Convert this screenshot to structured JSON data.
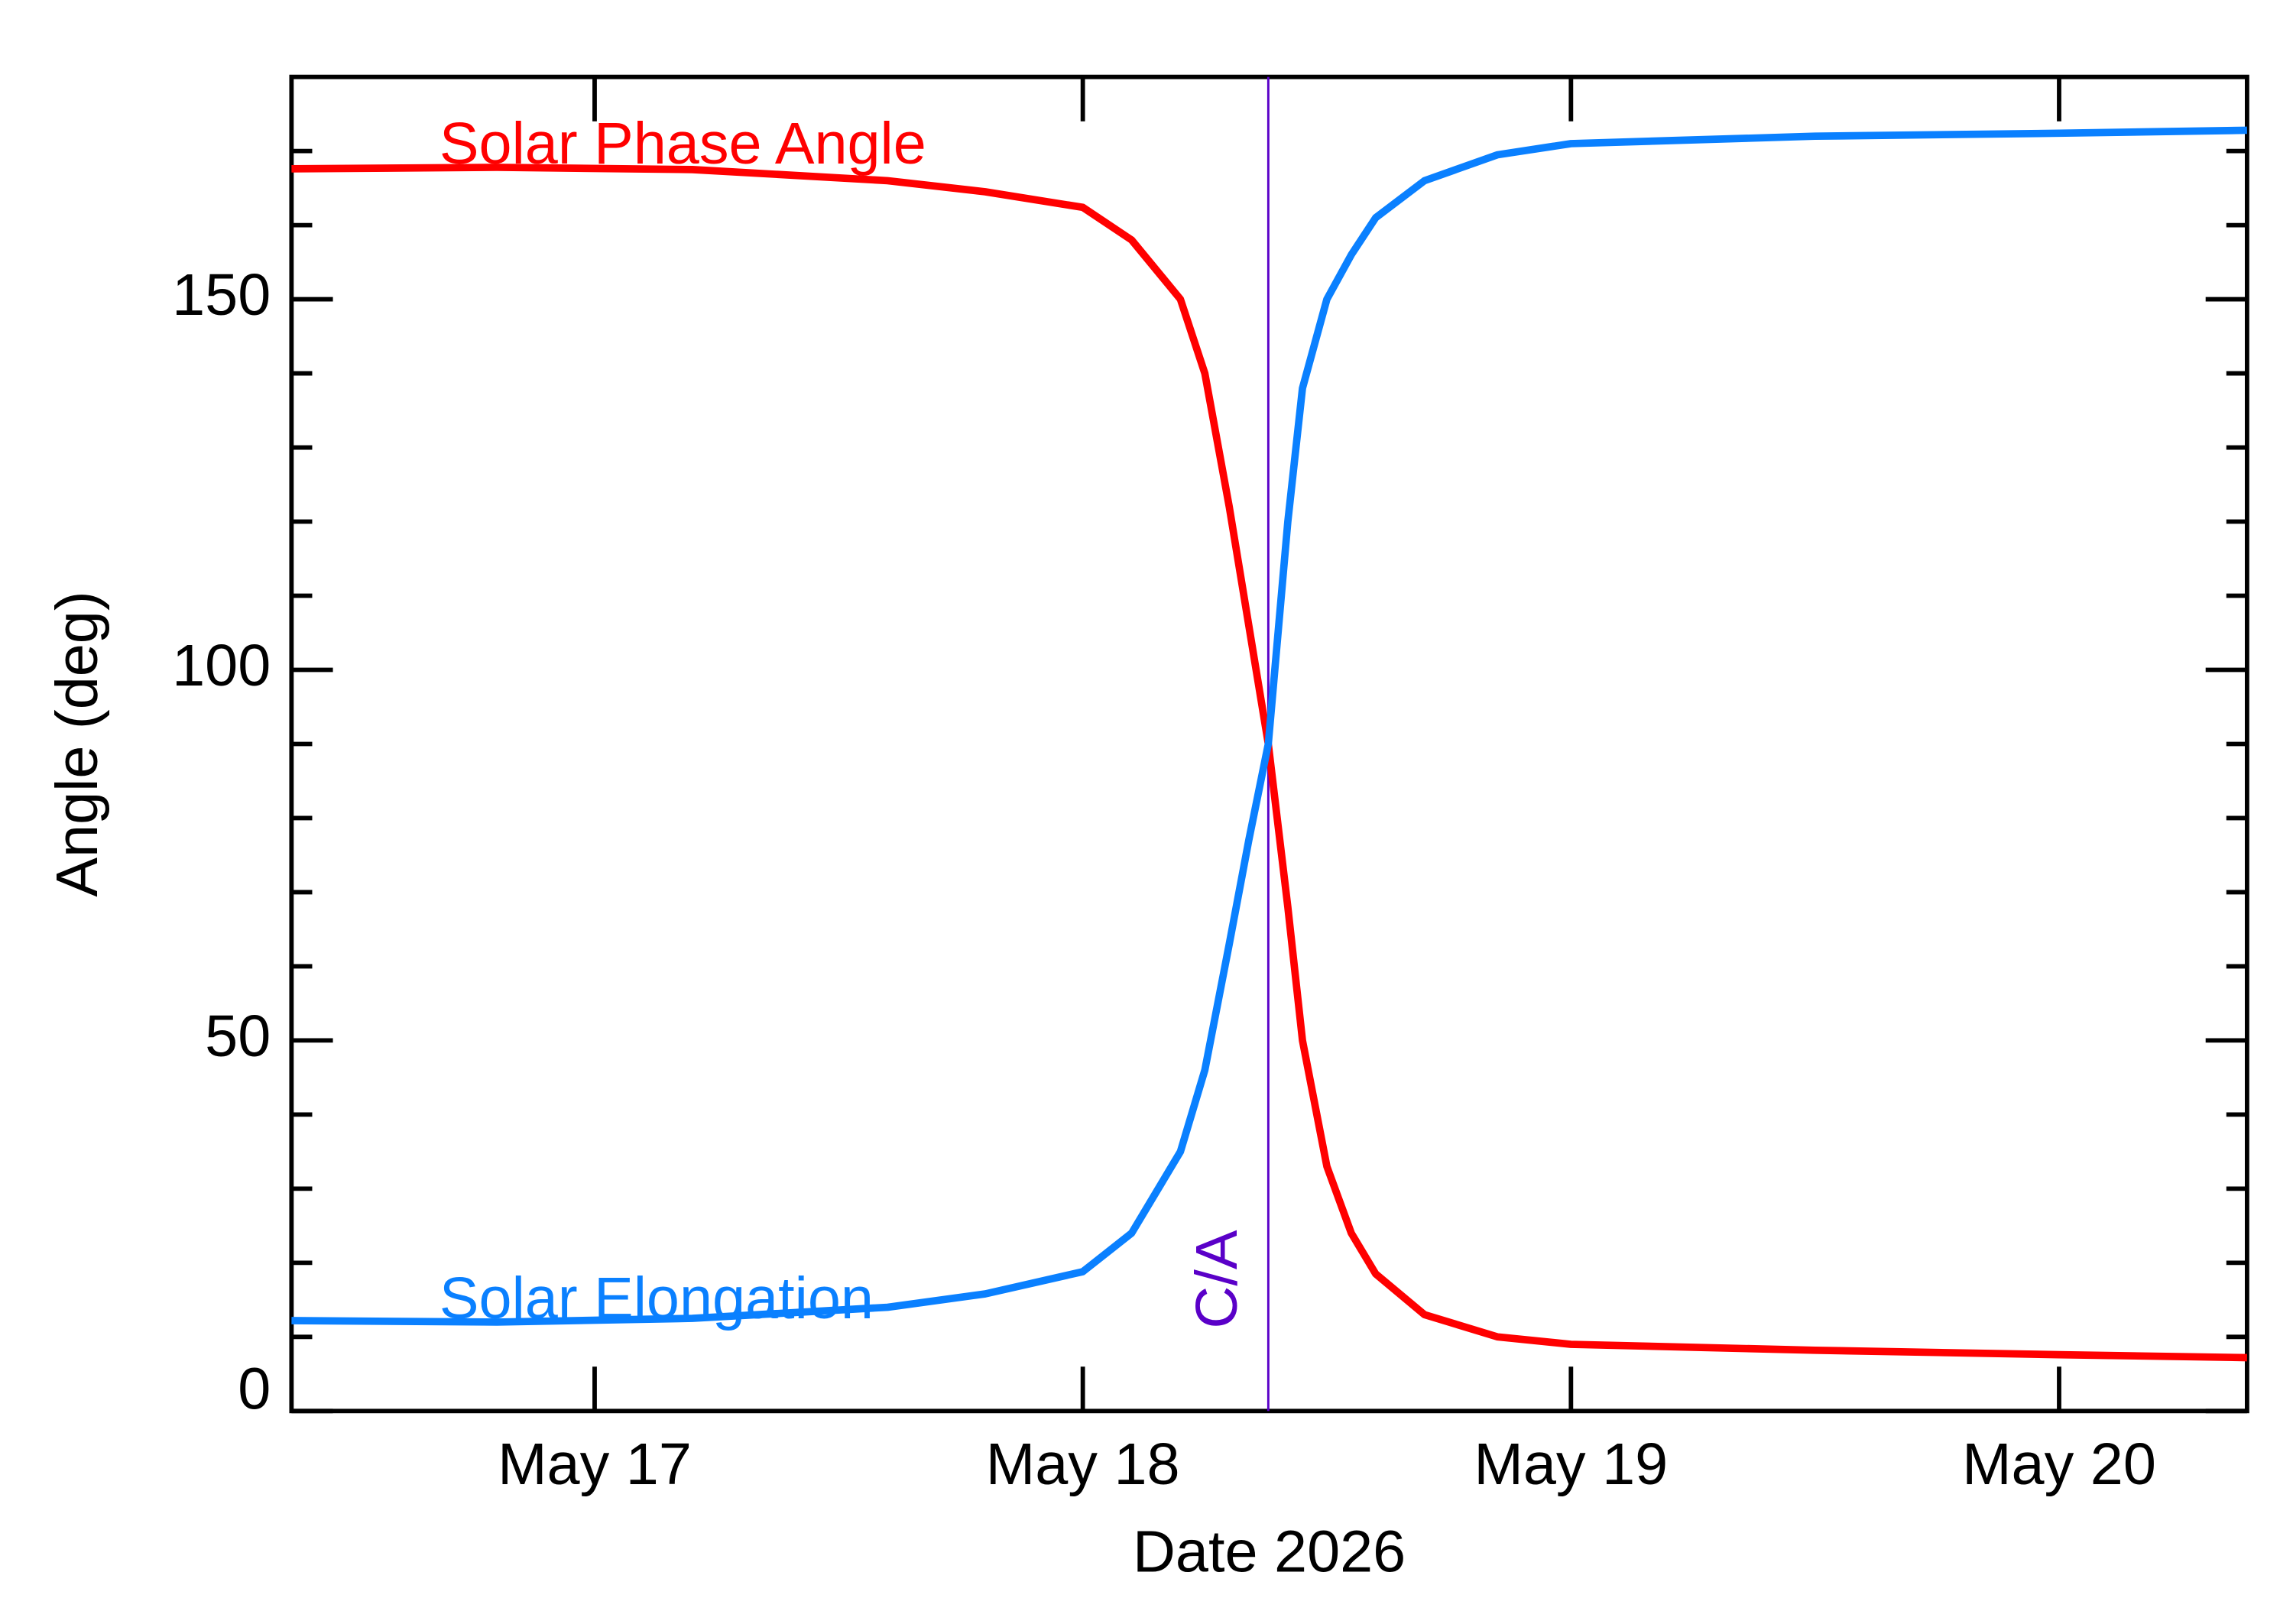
{
  "chart_data": {
    "type": "line",
    "xlabel": "Date 2026",
    "ylabel": "Angle (deg)",
    "xlim": [
      16.379,
      20.385
    ],
    "ylim": [
      0,
      180
    ],
    "xticks": [
      {
        "value": 17,
        "label": "May 17"
      },
      {
        "value": 18,
        "label": "May 18"
      },
      {
        "value": 19,
        "label": "May 19"
      },
      {
        "value": 20,
        "label": "May 20"
      }
    ],
    "yticks": [
      0,
      50,
      100,
      150
    ],
    "yminorticks": [
      10,
      20,
      30,
      40,
      60,
      70,
      80,
      90,
      110,
      120,
      130,
      140,
      160,
      170
    ],
    "closest_approach": {
      "label": "C/A",
      "x": 18.38,
      "color": "#5a00c8"
    },
    "series": [
      {
        "name": "Solar Phase Angle",
        "color": "#ff0000",
        "x": [
          16.379,
          16.8,
          17.2,
          17.6,
          17.8,
          18.0,
          18.1,
          18.2,
          18.25,
          18.3,
          18.34,
          18.38,
          18.42,
          18.45,
          18.5,
          18.55,
          18.6,
          18.7,
          18.85,
          19.0,
          19.5,
          20.0,
          20.385
        ],
        "values": [
          167.6,
          167.8,
          167.5,
          166,
          164.5,
          162.4,
          158,
          150,
          140,
          122,
          106,
          90,
          68,
          50,
          33,
          24,
          18.5,
          13,
          10,
          9,
          8.2,
          7.6,
          7.2
        ]
      },
      {
        "name": "Solar Elongation",
        "color": "#0a80ff",
        "x": [
          16.379,
          16.8,
          17.2,
          17.6,
          17.8,
          18.0,
          18.1,
          18.2,
          18.25,
          18.3,
          18.34,
          18.38,
          18.42,
          18.45,
          18.5,
          18.55,
          18.6,
          18.7,
          18.85,
          19.0,
          19.5,
          20.0,
          20.385
        ],
        "values": [
          12.2,
          12.0,
          12.5,
          14,
          15.8,
          18.8,
          24,
          35,
          46,
          63,
          77,
          90,
          120,
          138,
          150,
          156,
          161,
          166,
          169.5,
          171,
          172,
          172.4,
          172.8
        ]
      }
    ]
  }
}
